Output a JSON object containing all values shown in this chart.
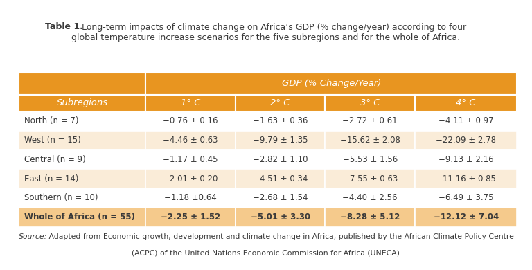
{
  "title_bold": "Table 1.",
  "title_rest": " Long-term impacts of climate change on Africa’s GDP (% change/year) according to four",
  "title_line2": "global temperature increase scenarios for the five subregions and for the whole of Africa.",
  "header_subregion": "Subregions",
  "header_gdp": "GDP (% Change/Year)",
  "col_headers": [
    "1° C",
    "2° C",
    "3° C",
    "4° C"
  ],
  "rows": [
    [
      "North (n = 7)",
      "−0.76 ± 0.16",
      "−1.63 ± 0.36",
      "−2.72 ± 0.61",
      "−4.11 ± 0.97"
    ],
    [
      "West (n = 15)",
      "−4.46 ± 0.63",
      "−9.79 ± 1.35",
      "−15.62 ± 2.08",
      "−22.09 ± 2.78"
    ],
    [
      "Central (n = 9)",
      "−1.17 ± 0.45",
      "−2.82 ± 1.10",
      "−5.53 ± 1.56",
      "−9.13 ± 2.16"
    ],
    [
      "East (n = 14)",
      "−2.01 ± 0.20",
      "−4.51 ± 0.34",
      "−7.55 ± 0.63",
      "−11.16 ± 0.85"
    ],
    [
      "Southern (n = 10)",
      "−1.18 ±0.64",
      "−2.68 ± 1.54",
      "−4.40 ± 2.56",
      "−6.49 ± 3.75"
    ],
    [
      "Whole of Africa (n = 55)",
      "−2.25 ± 1.52",
      "−5.01 ± 3.30",
      "−8.28 ± 5.12",
      "−12.12 ± 7.04"
    ]
  ],
  "source_italic": "Source:",
  "source_line1": " Adapted from Economic growth, development and climate change in Africa, published by the African Climate Policy Centre",
  "source_line2": "(ACPC) of the United Nations Economic Commission for Africa (UNECA)",
  "orange_dark": "#E89520",
  "orange_light": "#F5CA8C",
  "orange_lighter": "#FAECD8",
  "white": "#FFFFFF",
  "text_dark": "#3A3A3A",
  "bg": "#FFFFFF"
}
